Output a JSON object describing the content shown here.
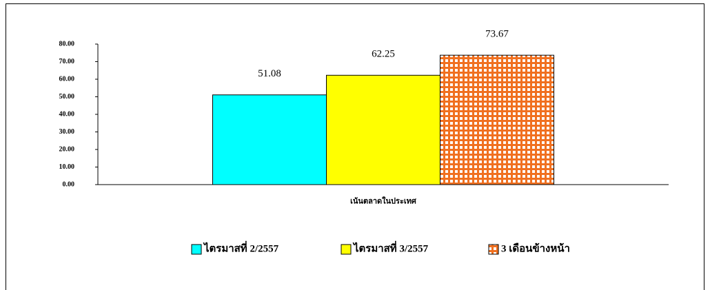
{
  "chart_data": {
    "type": "bar",
    "categories": [
      "เน้นตลาดในประเทศ"
    ],
    "series": [
      {
        "name": "ไตรมาสที่ 2/2557",
        "color": "#00ffff",
        "values": [
          51.08
        ]
      },
      {
        "name": "ไตรมาสที่ 3/2557",
        "color": "#ffff00",
        "values": [
          62.25
        ]
      },
      {
        "name": "3 เดือนข้างหน้า",
        "color": "#f07020",
        "hatch": "grid",
        "values": [
          73.67
        ]
      }
    ],
    "ylim": [
      0,
      80
    ],
    "yticks": [
      {
        "value": 0,
        "label": "0.00"
      },
      {
        "value": 10,
        "label": "10.00"
      },
      {
        "value": 20,
        "label": "20.00"
      },
      {
        "value": 30,
        "label": "30.00"
      },
      {
        "value": 40,
        "label": "40.00"
      },
      {
        "value": 50,
        "label": "50.00"
      },
      {
        "value": 60,
        "label": "60.00"
      },
      {
        "value": 70,
        "label": "70.00"
      },
      {
        "value": 80,
        "label": "80.00"
      }
    ],
    "grid": false,
    "legend": "bottom"
  }
}
